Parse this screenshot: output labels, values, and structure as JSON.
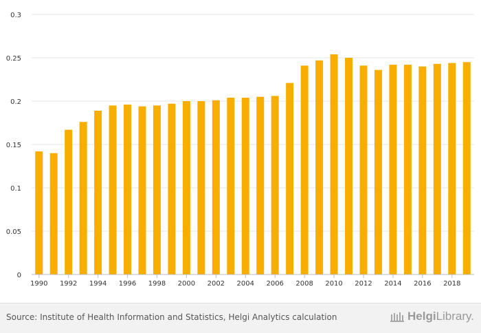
{
  "chart_data": {
    "type": "bar",
    "categories": [
      "1990",
      "1991",
      "1992",
      "1993",
      "1994",
      "1995",
      "1996",
      "1997",
      "1998",
      "1999",
      "2000",
      "2001",
      "2002",
      "2003",
      "2004",
      "2005",
      "2006",
      "2007",
      "2008",
      "2009",
      "2010",
      "2011",
      "2012",
      "2013",
      "2014",
      "2015",
      "2016",
      "2017",
      "2018",
      "2019"
    ],
    "values": [
      0.142,
      0.14,
      0.167,
      0.176,
      0.189,
      0.195,
      0.196,
      0.194,
      0.195,
      0.197,
      0.2,
      0.2,
      0.201,
      0.204,
      0.204,
      0.205,
      0.206,
      0.221,
      0.241,
      0.247,
      0.254,
      0.25,
      0.241,
      0.236,
      0.242,
      0.242,
      0.24,
      0.243,
      0.244,
      0.245
    ],
    "x_tick_labels": [
      "1990",
      "1992",
      "1994",
      "1996",
      "1998",
      "2000",
      "2002",
      "2004",
      "2006",
      "2008",
      "2010",
      "2012",
      "2014",
      "2016",
      "2018"
    ],
    "y_ticks": [
      0,
      0.05,
      0.1,
      0.15,
      0.2,
      0.25,
      0.3
    ],
    "y_tick_labels": [
      "0",
      "0.05",
      "0.1",
      "0.15",
      "0.2",
      "0.25",
      "0.3"
    ],
    "ylim": [
      0,
      0.3
    ],
    "title": "",
    "xlabel": "",
    "ylabel": "",
    "grid": true,
    "bar_color": "#f7ae00"
  },
  "footer": {
    "source": "Source: Institute of Health Information and Statistics, Helgi Analytics calculation",
    "logo_text_bold": "Helgi",
    "logo_text_rest": "Library."
  }
}
